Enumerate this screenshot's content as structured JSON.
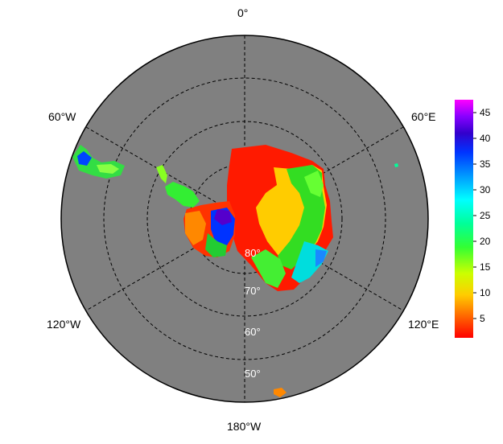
{
  "longitude_labels": {
    "top": "0°",
    "upper_left": "60°W",
    "upper_right": "60°E",
    "lower_left": "120°W",
    "lower_right": "120°E",
    "bottom": "180°W"
  },
  "latitude_labels": [
    "80°",
    "70°",
    "60°",
    "50°"
  ],
  "colorbar": {
    "tick_labels": [
      "5",
      "10",
      "15",
      "20",
      "25",
      "30",
      "35",
      "40",
      "45"
    ],
    "colors": [
      "#ff0000",
      "#ff6600",
      "#ffcc00",
      "#ccff00",
      "#33ff33",
      "#00ff99",
      "#00ffff",
      "#0099ff",
      "#0033ff",
      "#3300cc",
      "#8800ff",
      "#ff00ff"
    ]
  },
  "map_colors": {
    "ocean": "#808080",
    "background": "#ffffff"
  }
}
